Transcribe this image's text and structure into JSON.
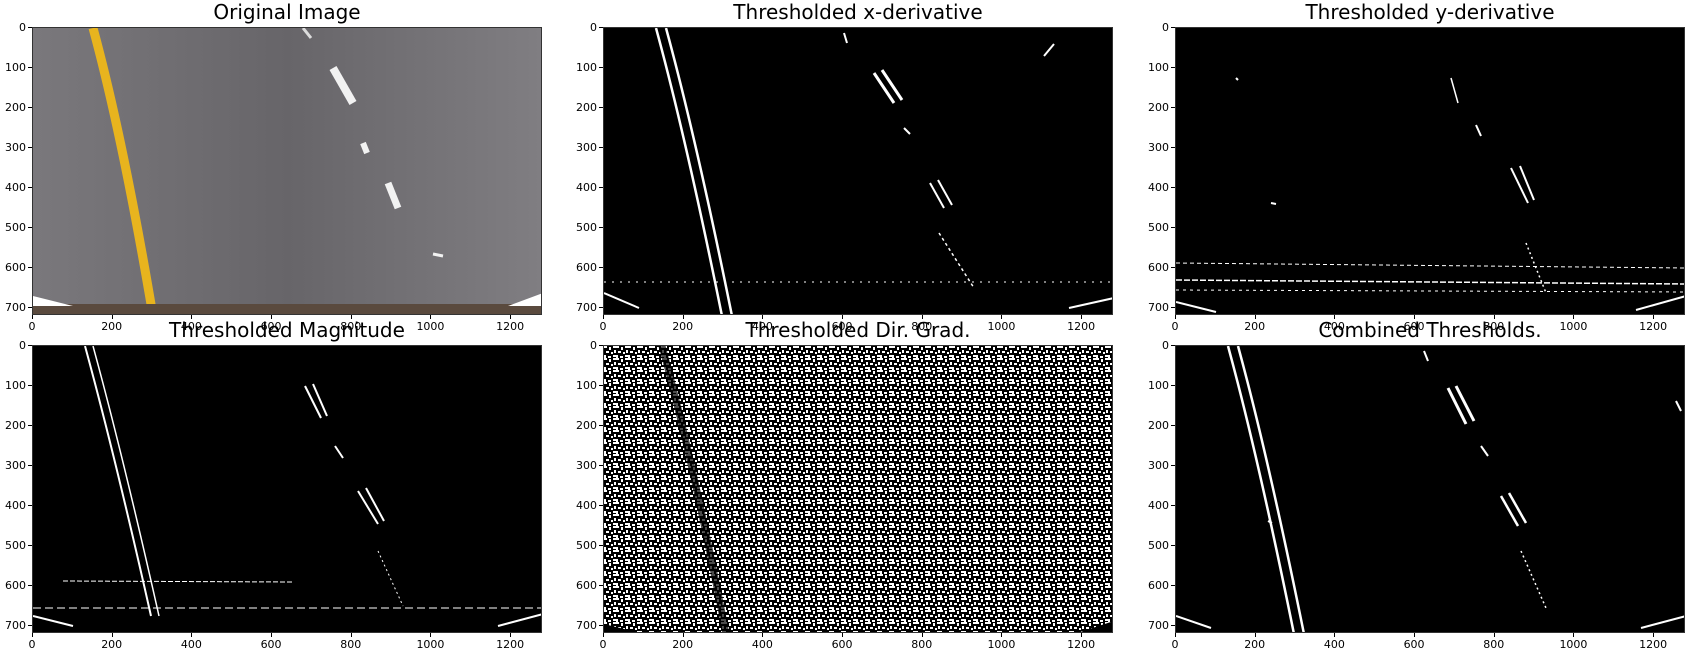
{
  "figure": {
    "panels": [
      {
        "title": "Original Image"
      },
      {
        "title": "Thresholded x-derivative"
      },
      {
        "title": "Thresholded y-derivative"
      },
      {
        "title": "Thresholded Magnitude"
      },
      {
        "title": "Thresholded Dir. Grad."
      },
      {
        "title": "Combined Thresholds."
      }
    ],
    "y_ticks": [
      "0",
      "100",
      "200",
      "300",
      "400",
      "500",
      "600",
      "700"
    ],
    "x_ticks": [
      "0",
      "200",
      "400",
      "600",
      "800",
      "1000",
      "1200"
    ]
  },
  "colors": {
    "lane_yellow": "#e8b41e",
    "road_gray": "#6e6c70",
    "mask_white": "#ffffff",
    "mask_black": "#000000"
  }
}
